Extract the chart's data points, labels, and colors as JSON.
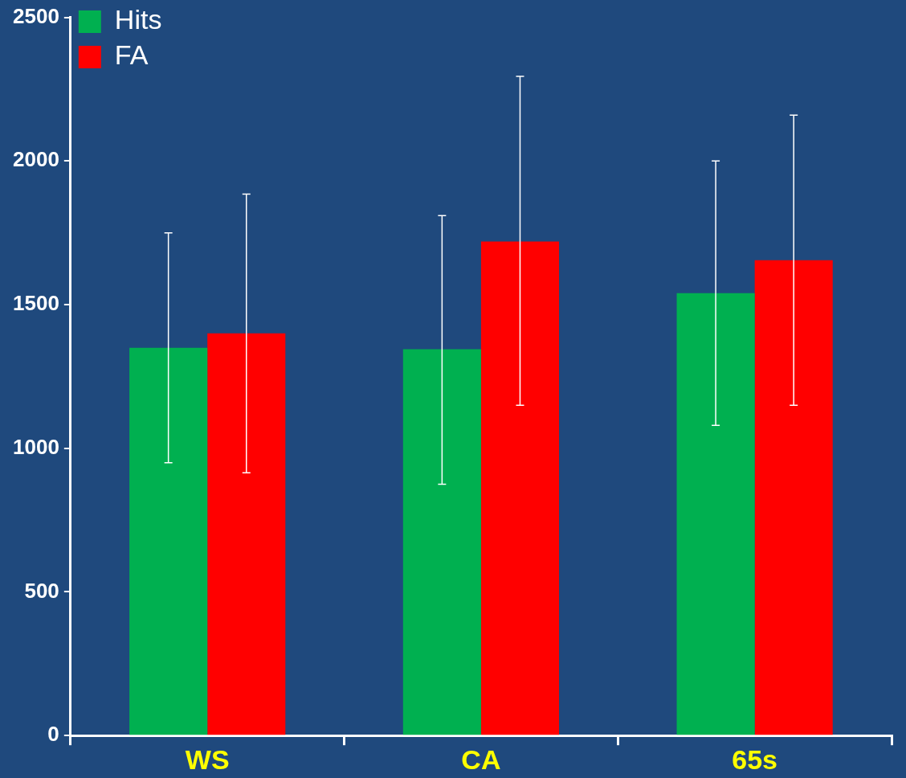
{
  "chart_data": {
    "type": "bar",
    "categories": [
      "WS",
      "CA",
      "65s"
    ],
    "series": [
      {
        "name": "Hits",
        "color": "#00b050",
        "values": [
          1350,
          1345,
          1540
        ],
        "errors": [
          [
            950,
            1750
          ],
          [
            875,
            1810
          ],
          [
            1080,
            2000
          ]
        ]
      },
      {
        "name": "FA",
        "color": "#ff0000",
        "values": [
          1400,
          1720,
          1655
        ],
        "errors": [
          [
            915,
            1885
          ],
          [
            1150,
            2295
          ],
          [
            1150,
            2160
          ]
        ]
      }
    ],
    "ylim": [
      0,
      2500
    ],
    "yticks": [
      0,
      500,
      1000,
      1500,
      2000,
      2500
    ],
    "grid": false,
    "legend": "top left"
  }
}
